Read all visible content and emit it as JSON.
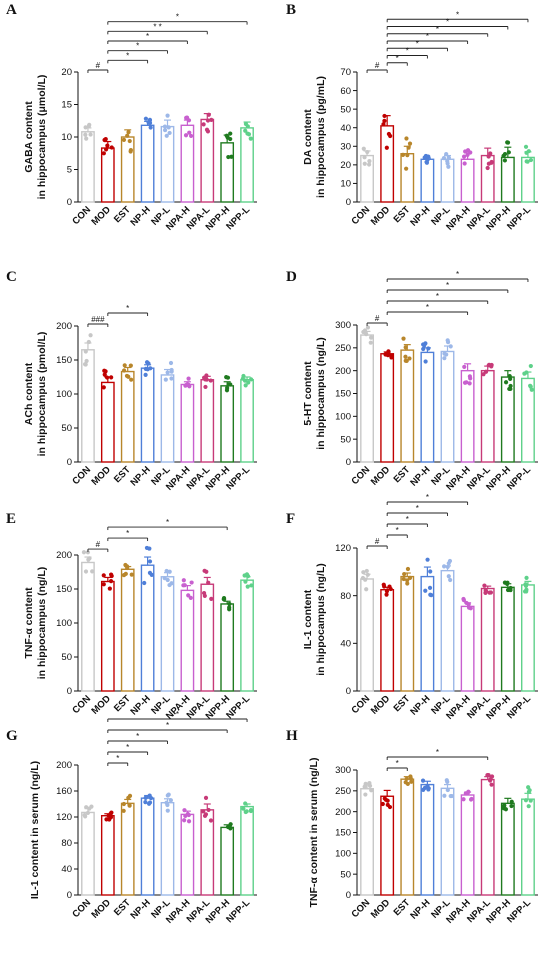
{
  "chart_data": [
    {
      "panel": "A",
      "type": "bar",
      "categories": [
        "CON",
        "MOD",
        "EST",
        "NP-H",
        "NP-L",
        "NPA-H",
        "NPA-L",
        "NPP-H",
        "NPP-L"
      ],
      "values": [
        10.8,
        8.3,
        10.0,
        11.8,
        11.6,
        11.8,
        12.7,
        9.1,
        11.4
      ],
      "ylabel": [
        "GABA content",
        "in hippocampus (μmol/L)"
      ],
      "ylim": [
        0,
        20
      ],
      "yticks": [
        0,
        5,
        10,
        15,
        20
      ],
      "brackets": [
        {
          "from": 0,
          "to": 1,
          "label": "#"
        },
        {
          "from": 1,
          "to": 3,
          "label": "*"
        },
        {
          "from": 1,
          "to": 4,
          "label": "*"
        },
        {
          "from": 1,
          "to": 5,
          "label": "*"
        },
        {
          "from": 1,
          "to": 6,
          "label": "* *"
        },
        {
          "from": 1,
          "to": 8,
          "label": "*"
        }
      ]
    },
    {
      "panel": "B",
      "type": "bar",
      "categories": [
        "CON",
        "MOD",
        "EST",
        "NP-H",
        "NP-L",
        "NPA-H",
        "NPA-L",
        "NPP-H",
        "NPP-L"
      ],
      "values": [
        25,
        41,
        26,
        23,
        23,
        23,
        25,
        24,
        24
      ],
      "ylabel": [
        "DA content",
        "in hippocampus (pg/mL)"
      ],
      "ylim": [
        0,
        70
      ],
      "yticks": [
        0,
        10,
        20,
        30,
        40,
        50,
        60,
        70
      ],
      "brackets": [
        {
          "from": 0,
          "to": 1,
          "label": "#"
        },
        {
          "from": 1,
          "to": 2,
          "label": "*"
        },
        {
          "from": 1,
          "to": 3,
          "label": "*"
        },
        {
          "from": 1,
          "to": 4,
          "label": "*"
        },
        {
          "from": 1,
          "to": 5,
          "label": "*"
        },
        {
          "from": 1,
          "to": 6,
          "label": "*"
        },
        {
          "from": 1,
          "to": 7,
          "label": "*"
        },
        {
          "from": 1,
          "to": 8,
          "label": "*"
        }
      ]
    },
    {
      "panel": "C",
      "type": "bar",
      "categories": [
        "CON",
        "MOD",
        "EST",
        "NP-H",
        "NP-L",
        "NPA-H",
        "NPA-L",
        "NPP-H",
        "NPP-L"
      ],
      "values": [
        165,
        117,
        133,
        138,
        128,
        114,
        121,
        112,
        121
      ],
      "ylabel": [
        "ACh content",
        "in hippocampus (pmol/L)"
      ],
      "ylim": [
        0,
        200
      ],
      "yticks": [
        0,
        50,
        100,
        150,
        200
      ],
      "brackets": [
        {
          "from": 0,
          "to": 1,
          "label": "###"
        },
        {
          "from": 1,
          "to": 3,
          "label": "*"
        }
      ]
    },
    {
      "panel": "D",
      "type": "bar",
      "categories": [
        "CON",
        "MOD",
        "EST",
        "NP-H",
        "NP-L",
        "NPA-H",
        "NPA-L",
        "NPP-H",
        "NPP-L"
      ],
      "values": [
        278,
        237,
        245,
        240,
        242,
        200,
        200,
        186,
        183
      ],
      "ylabel": [
        "5-HT content",
        "in hippocampus (ng/L)"
      ],
      "ylim": [
        0,
        300
      ],
      "yticks": [
        0,
        50,
        100,
        150,
        200,
        250,
        300
      ],
      "brackets": [
        {
          "from": 0,
          "to": 1,
          "label": "#"
        },
        {
          "from": 1,
          "to": 5,
          "label": "*"
        },
        {
          "from": 1,
          "to": 6,
          "label": "*"
        },
        {
          "from": 1,
          "to": 7,
          "label": "*"
        },
        {
          "from": 1,
          "to": 8,
          "label": "*"
        }
      ]
    },
    {
      "panel": "E",
      "type": "bar",
      "categories": [
        "CON",
        "MOD",
        "EST",
        "NP-H",
        "NP-L",
        "NPA-H",
        "NPA-L",
        "NPP-H",
        "NPP-L"
      ],
      "values": [
        189,
        161,
        179,
        185,
        168,
        148,
        157,
        128,
        163
      ],
      "ylabel": [
        "TNF-α content",
        "in hippocampus (ng/L)"
      ],
      "ylim": [
        0,
        200
      ],
      "yticks": [
        0,
        50,
        100,
        150,
        200
      ],
      "brackets": [
        {
          "from": 0,
          "to": 1,
          "label": "#"
        },
        {
          "from": 1,
          "to": 3,
          "label": "*"
        },
        {
          "from": 1,
          "to": 7,
          "label": "*"
        }
      ]
    },
    {
      "panel": "F",
      "type": "bar",
      "categories": [
        "CON",
        "MOD",
        "EST",
        "NP-H",
        "NP-L",
        "NPA-H",
        "NPA-L",
        "NPP-H",
        "NPP-L"
      ],
      "values": [
        94,
        85,
        96,
        96,
        101,
        71,
        86,
        87,
        89
      ],
      "ylabel": [
        "IL-1 content",
        "in hippocampus (ng/L)"
      ],
      "ylim": [
        0,
        120
      ],
      "yticks": [
        0,
        40,
        80,
        120
      ],
      "brackets": [
        {
          "from": 0,
          "to": 1,
          "label": "#"
        },
        {
          "from": 1,
          "to": 2,
          "label": "*"
        },
        {
          "from": 1,
          "to": 3,
          "label": "*"
        },
        {
          "from": 1,
          "to": 4,
          "label": "*"
        },
        {
          "from": 1,
          "to": 5,
          "label": "*"
        }
      ]
    },
    {
      "panel": "G",
      "type": "bar",
      "categories": [
        "CON",
        "MOD",
        "EST",
        "NP-H",
        "NP-L",
        "NPA-H",
        "NPA-L",
        "NPP-H",
        "NPP-L"
      ],
      "values": [
        127,
        122,
        141,
        149,
        142,
        124,
        131,
        104,
        136
      ],
      "ylabel": [
        "IL-1 content in serum (ng/L)"
      ],
      "ylim": [
        0,
        200
      ],
      "yticks": [
        0,
        40,
        80,
        120,
        160,
        200
      ],
      "brackets": [
        {
          "from": 1,
          "to": 2,
          "label": "*"
        },
        {
          "from": 1,
          "to": 3,
          "label": "*"
        },
        {
          "from": 1,
          "to": 4,
          "label": "*"
        },
        {
          "from": 1,
          "to": 7,
          "label": "*"
        },
        {
          "from": 1,
          "to": 8,
          "label": "*"
        }
      ]
    },
    {
      "panel": "H",
      "type": "bar",
      "categories": [
        "CON",
        "MOD",
        "EST",
        "NP-H",
        "NP-L",
        "NPA-H",
        "NPA-L",
        "NPP-H",
        "NPP-L"
      ],
      "values": [
        255,
        237,
        278,
        265,
        256,
        240,
        277,
        220,
        230
      ],
      "ylabel": [
        "TNF-α content in serum (ng/L)"
      ],
      "ylim": [
        0,
        300
      ],
      "yticks": [
        0,
        50,
        100,
        150,
        200,
        250,
        300
      ],
      "brackets": [
        {
          "from": 1,
          "to": 2,
          "label": "*"
        },
        {
          "from": 1,
          "to": 6,
          "label": "*"
        }
      ]
    }
  ],
  "colors": [
    "#c7c7c7",
    "#c00000",
    "#b8862b",
    "#4f7fd8",
    "#9db8e8",
    "#c860cf",
    "#c73a78",
    "#1f7a1f",
    "#5ed18a"
  ],
  "errors": {
    "A": [
      0.6,
      1.0,
      1.1,
      0.6,
      1.0,
      0.8,
      0.9,
      1.2,
      0.9
    ],
    "B": [
      2.5,
      5.5,
      4.0,
      0.7,
      2.0,
      3.5,
      4.0,
      5.5,
      3.0
    ],
    "C": [
      10,
      8,
      6,
      5,
      8,
      4,
      5,
      6,
      4
    ],
    "D": [
      8,
      4,
      12,
      10,
      12,
      15,
      10,
      14,
      14
    ],
    "E": [
      8,
      6,
      4,
      12,
      6,
      7,
      10,
      4,
      5
    ],
    "F": [
      4,
      2,
      3,
      8,
      4,
      3,
      2,
      3,
      3
    ],
    "G": [
      6,
      3,
      6,
      4,
      6,
      5,
      9,
      4,
      4
    ],
    "H": [
      9,
      14,
      6,
      8,
      9,
      7,
      7,
      12,
      14
    ]
  }
}
